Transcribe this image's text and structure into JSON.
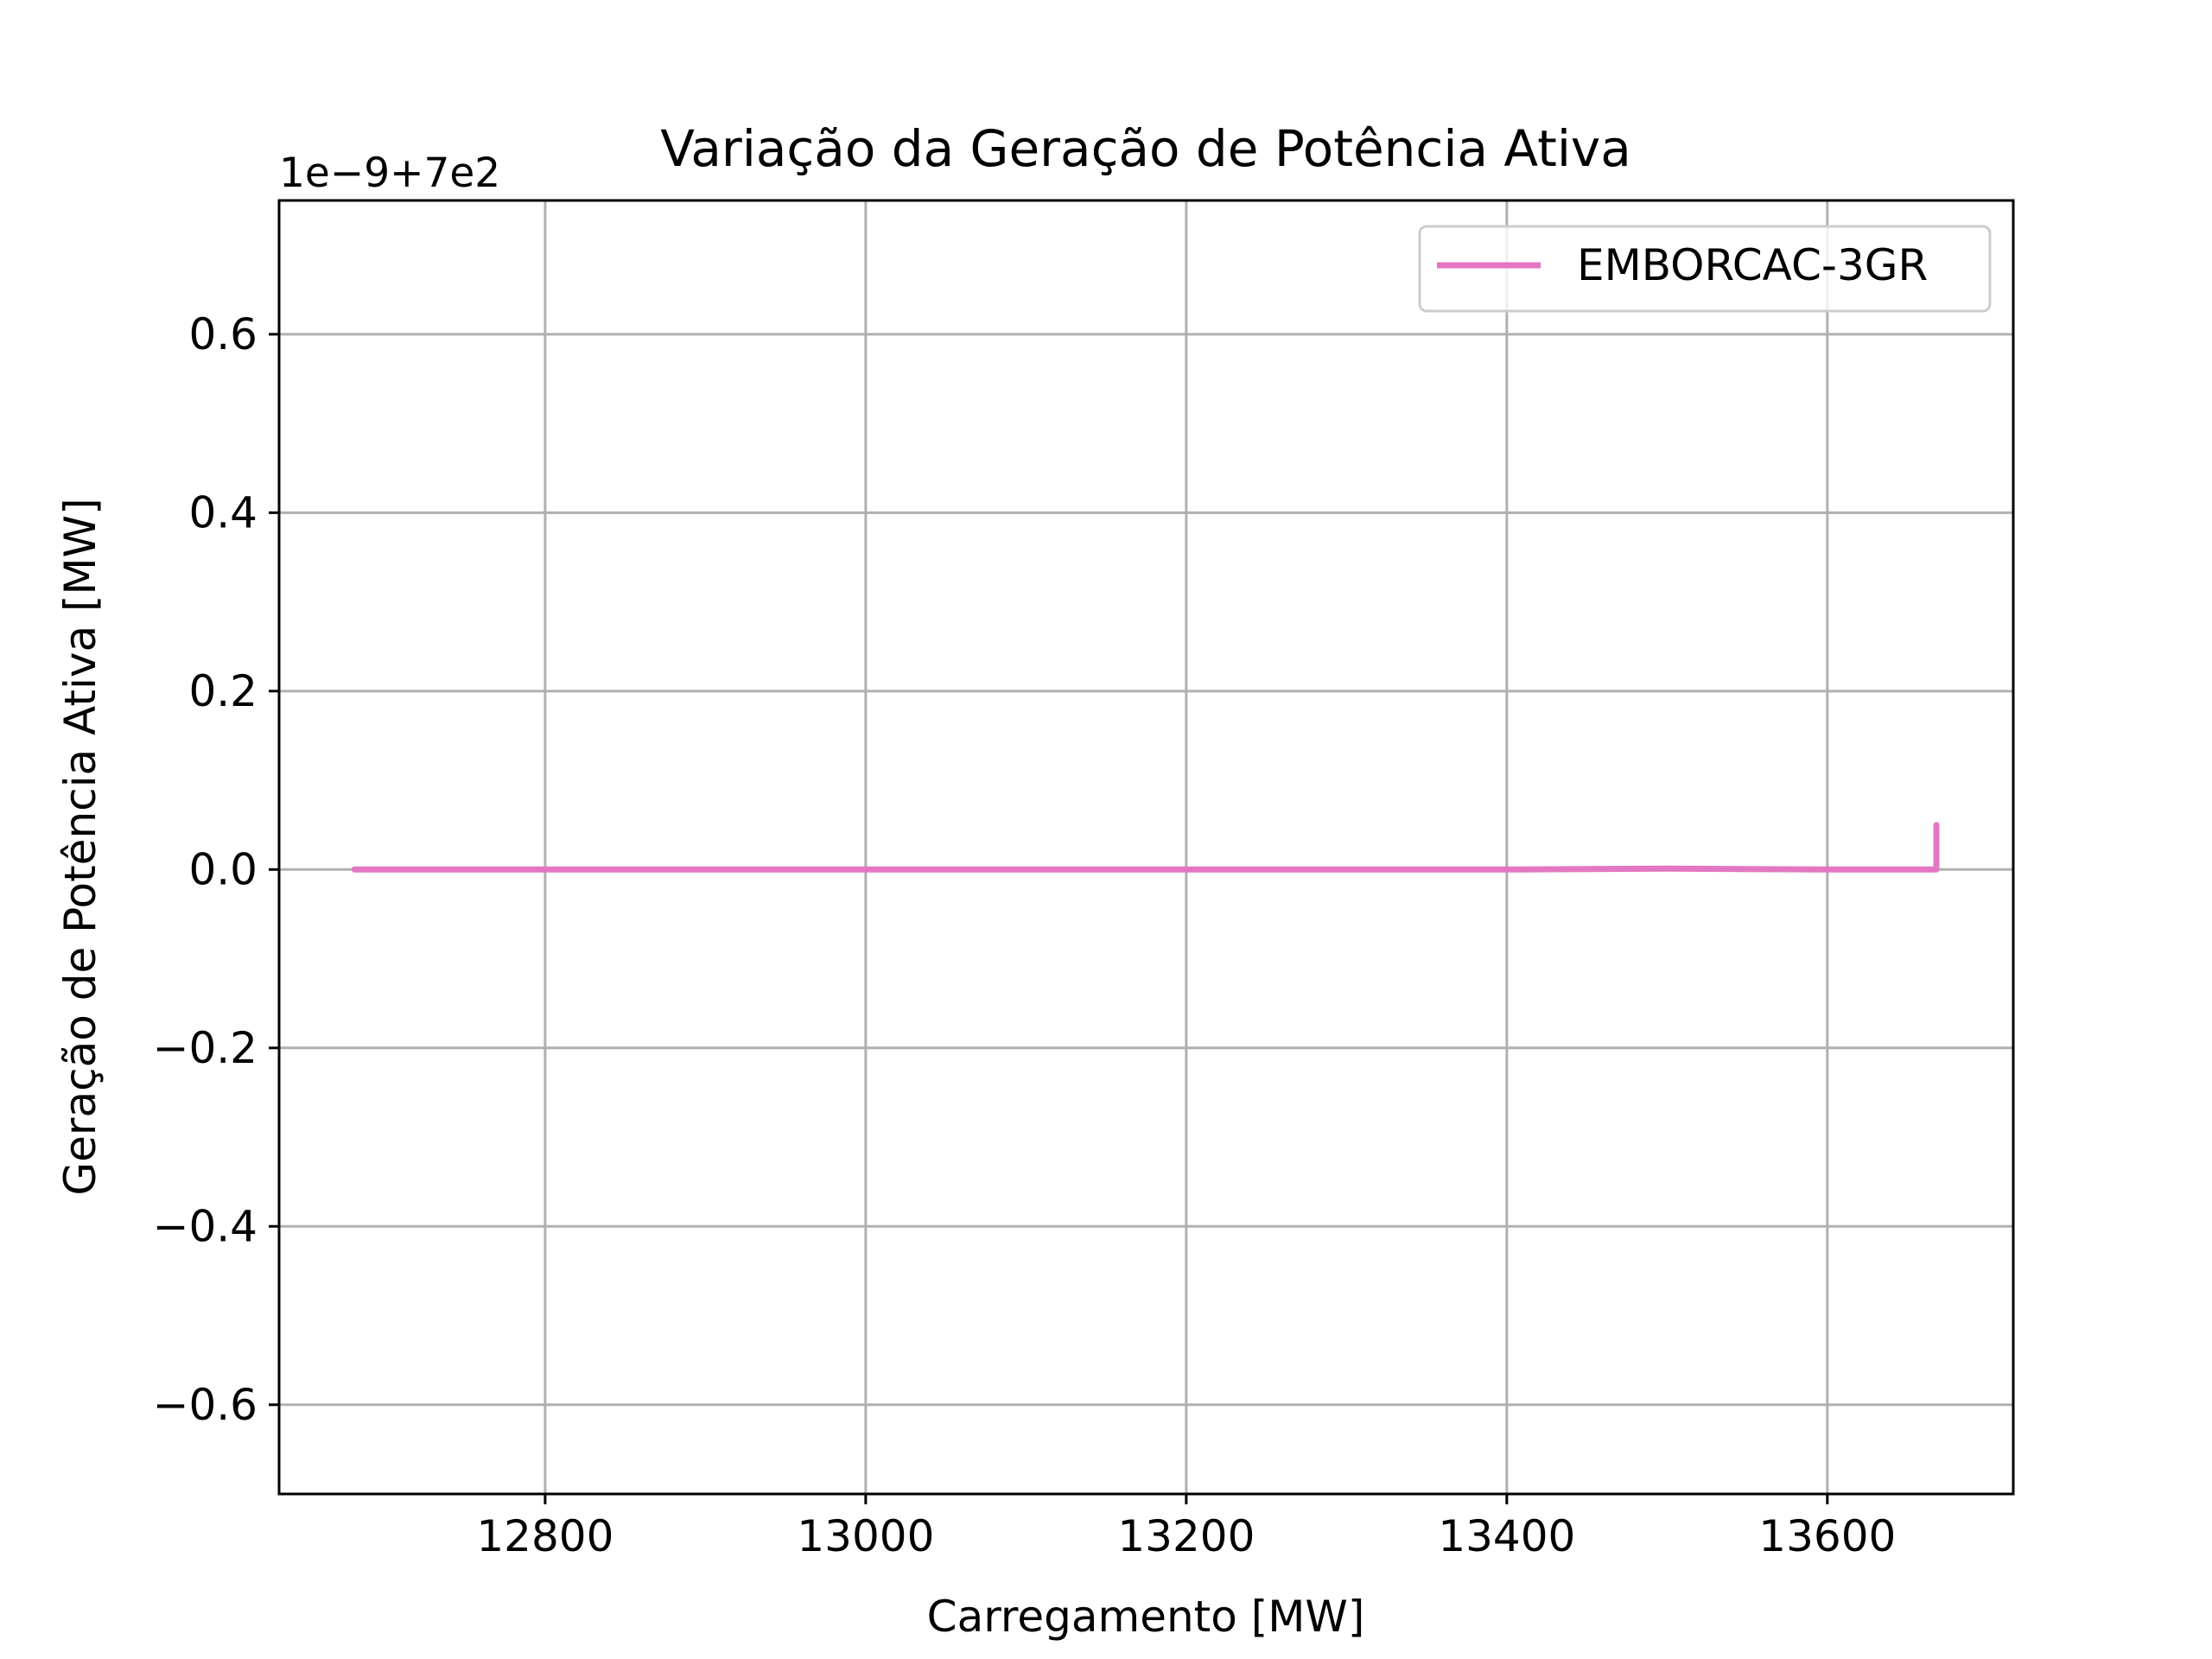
{
  "chart_data": {
    "type": "line",
    "title": "Variação da Geração de Potência Ativa",
    "xlabel": "Carregamento [MW]",
    "ylabel": "Geração de Potência Ativa [MW]",
    "offset_label": "1e−9+7e2",
    "xlim": [
      12634,
      13716
    ],
    "ylim": [
      -0.7,
      0.75
    ],
    "xticks": [
      12800,
      13000,
      13200,
      13400,
      13600
    ],
    "xtick_labels": [
      "12800",
      "13000",
      "13200",
      "13400",
      "13600"
    ],
    "yticks": [
      -0.6,
      -0.4,
      -0.2,
      0.0,
      0.2,
      0.4,
      0.6
    ],
    "ytick_labels": [
      "−0.6",
      "−0.4",
      "−0.2",
      "0.0",
      "0.2",
      "0.4",
      "0.6"
    ],
    "grid": true,
    "legend_position": "upper right",
    "series": [
      {
        "name": "EMBORCAC-3GR",
        "color": "#e377c2",
        "x": [
          12681,
          12800,
          13000,
          13200,
          13400,
          13500,
          13600,
          13650,
          13667,
          13668,
          13668,
          13668
        ],
        "y": [
          0.0,
          0.0,
          0.0,
          0.0,
          0.0,
          0.001,
          0.0,
          0.0,
          0.0,
          0.0,
          0.03,
          0.05
        ]
      }
    ]
  }
}
